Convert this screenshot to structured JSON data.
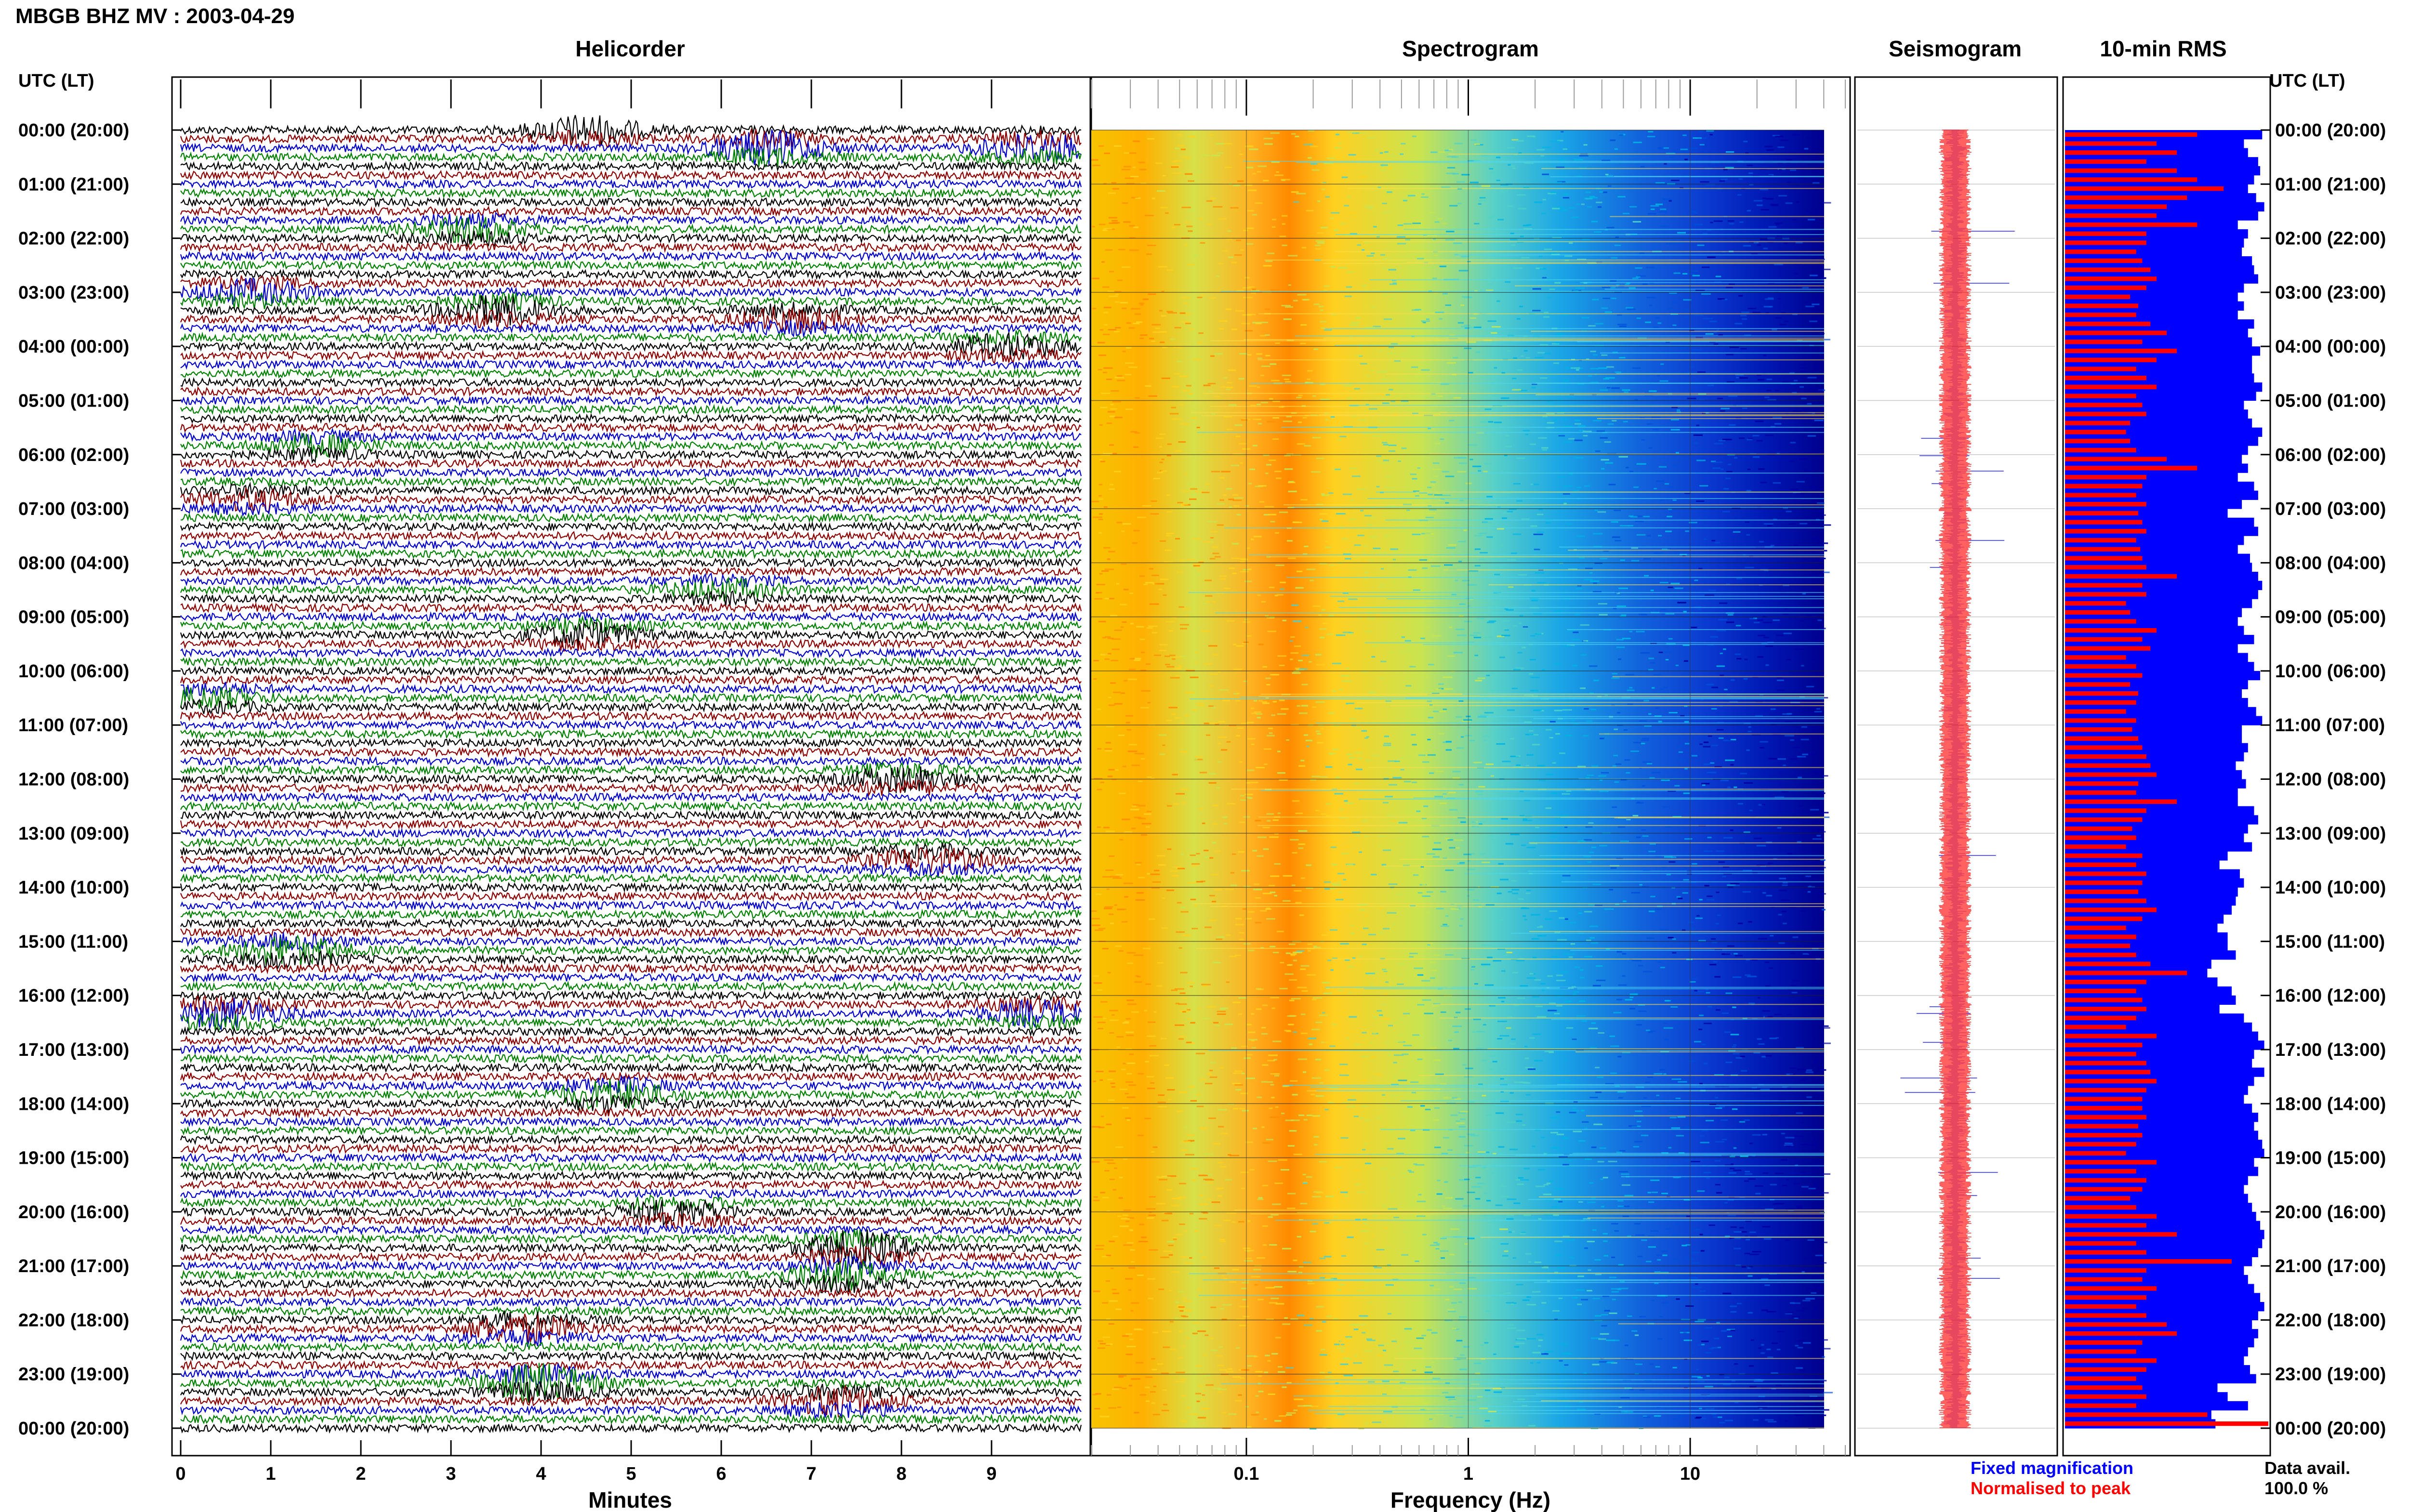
{
  "header": {
    "station_title": "MBGB BHZ MV : 2003-04-29",
    "utc_lt_label_left": "UTC (LT)",
    "utc_lt_label_right": "UTC (LT)"
  },
  "panels": {
    "helicorder_title": "Helicorder",
    "spectrogram_title": "Spectrogram",
    "seismogram_title": "Seismogram",
    "rms_title": "10-min RMS"
  },
  "hour_labels": [
    "00:00 (20:00)",
    "01:00 (21:00)",
    "02:00 (22:00)",
    "03:00 (23:00)",
    "04:00 (00:00)",
    "05:00 (01:00)",
    "06:00 (02:00)",
    "07:00 (03:00)",
    "08:00 (04:00)",
    "09:00 (05:00)",
    "10:00 (06:00)",
    "11:00 (07:00)",
    "12:00 (08:00)",
    "13:00 (09:00)",
    "14:00 (10:00)",
    "15:00 (11:00)",
    "16:00 (12:00)",
    "17:00 (13:00)",
    "18:00 (14:00)",
    "19:00 (15:00)",
    "20:00 (16:00)",
    "21:00 (17:00)",
    "22:00 (18:00)",
    "23:00 (19:00)",
    "00:00 (20:00)"
  ],
  "colors": {
    "trace_cycle": [
      "#000000",
      "#8b0000",
      "#0000c8",
      "#008000"
    ],
    "spectrogram_ramp": [
      "#ff8c00",
      "#ffd21e",
      "#c8e650",
      "#50d2c8",
      "#00b4e6",
      "#0050dc",
      "#0000a0"
    ],
    "seismo_fixed": "#0000ff",
    "seismo_normalised": "#ff0000",
    "rms_blue": "#0000ff",
    "rms_red": "#ff0000"
  },
  "footer": {
    "legend_fixed": "Fixed magnification",
    "legend_normalised": "Normalised to peak",
    "data_avail_label": "Data avail.",
    "data_avail_value": "100.0 %"
  },
  "chart_data": [
    {
      "type": "line",
      "title": "Helicorder",
      "xlabel": "Minutes",
      "x_ticks": [
        0,
        1,
        2,
        3,
        4,
        5,
        6,
        7,
        8,
        9
      ],
      "x_tick_labels": [
        "0",
        "1",
        "2",
        "3",
        "4",
        "5",
        "6",
        "7",
        "8",
        "9"
      ],
      "xlim": [
        0,
        10
      ],
      "y_range_utc": [
        "00:00",
        "24:00"
      ],
      "rows_per_hour": 6,
      "row_count": 144,
      "events": [
        {
          "hour": 0.0,
          "minute": 4.5,
          "amp": 3.0
        },
        {
          "hour": 0.33,
          "minute": 6.5,
          "amp": 3.5
        },
        {
          "hour": 0.33,
          "minute": 9.5,
          "amp": 3.0
        },
        {
          "hour": 1.83,
          "minute": 3.2,
          "amp": 2.5
        },
        {
          "hour": 3.0,
          "minute": 0.8,
          "amp": 2.5
        },
        {
          "hour": 3.33,
          "minute": 3.5,
          "amp": 3.0
        },
        {
          "hour": 3.5,
          "minute": 6.8,
          "amp": 2.5
        },
        {
          "hour": 4.0,
          "minute": 9.2,
          "amp": 2.5
        },
        {
          "hour": 5.83,
          "minute": 1.5,
          "amp": 2.0
        },
        {
          "hour": 6.83,
          "minute": 0.8,
          "amp": 2.0
        },
        {
          "hour": 8.5,
          "minute": 6.0,
          "amp": 2.0
        },
        {
          "hour": 9.33,
          "minute": 4.5,
          "amp": 2.5
        },
        {
          "hour": 10.5,
          "minute": 0.3,
          "amp": 2.0
        },
        {
          "hour": 12.0,
          "minute": 8.0,
          "amp": 2.5
        },
        {
          "hour": 13.5,
          "minute": 8.3,
          "amp": 2.5
        },
        {
          "hour": 15.17,
          "minute": 1.2,
          "amp": 3.0
        },
        {
          "hour": 16.33,
          "minute": 0.5,
          "amp": 3.0
        },
        {
          "hour": 16.33,
          "minute": 9.5,
          "amp": 2.5
        },
        {
          "hour": 17.83,
          "minute": 4.8,
          "amp": 3.0
        },
        {
          "hour": 20.0,
          "minute": 5.5,
          "amp": 2.5
        },
        {
          "hour": 20.67,
          "minute": 7.5,
          "amp": 3.5
        },
        {
          "hour": 21.17,
          "minute": 7.3,
          "amp": 3.0
        },
        {
          "hour": 22.17,
          "minute": 3.8,
          "amp": 3.0
        },
        {
          "hour": 23.17,
          "minute": 4.0,
          "amp": 4.0
        },
        {
          "hour": 23.5,
          "minute": 7.3,
          "amp": 3.0
        }
      ]
    },
    {
      "type": "heatmap",
      "title": "Spectrogram",
      "xlabel": "Frequency (Hz)",
      "x_scale": "log",
      "xlim": [
        0.02,
        50
      ],
      "x_ticks": [
        0.1,
        1,
        10
      ],
      "x_tick_labels": [
        "0.1",
        "1",
        "10"
      ],
      "power_profile": [
        {
          "hz": 0.025,
          "level": 0.15
        },
        {
          "hz": 0.06,
          "level": 0.3
        },
        {
          "hz": 0.15,
          "level": 0.25
        },
        {
          "hz": 0.27,
          "level": 0.05
        },
        {
          "hz": 0.5,
          "level": 0.3
        },
        {
          "hz": 1.0,
          "level": 0.45
        },
        {
          "hz": 2.0,
          "level": 0.6
        },
        {
          "hz": 6.0,
          "level": 0.75
        },
        {
          "hz": 10.0,
          "level": 0.85
        },
        {
          "hz": 30.0,
          "level": 1.0
        }
      ]
    },
    {
      "type": "line",
      "title": "Seismogram",
      "series": [
        {
          "name": "Fixed magnification"
        },
        {
          "name": "Normalised to peak"
        }
      ]
    },
    {
      "type": "bar",
      "title": "10-min RMS",
      "series": [
        {
          "name": "Fixed magnification",
          "values": [
            0.97,
            0.88,
            0.9,
            0.95,
            0.96,
            0.93,
            0.9,
            0.94,
            0.98,
            0.95,
            0.85,
            0.9,
            0.88,
            0.87,
            0.92,
            0.93,
            0.95,
            0.88,
            0.85,
            0.88,
            0.85,
            0.93,
            0.9,
            0.92,
            0.96,
            0.92,
            0.92,
            0.93,
            0.97,
            0.94,
            0.88,
            0.9,
            0.92,
            0.97,
            0.95,
            0.9,
            0.87,
            0.9,
            0.85,
            0.93,
            0.95,
            0.87,
            0.8,
            0.93,
            0.95,
            0.88,
            0.85,
            0.91,
            0.92,
            0.95,
            0.97,
            0.95,
            0.92,
            0.87,
            0.85,
            0.88,
            0.93,
            0.85,
            0.9,
            0.93,
            0.96,
            0.9,
            0.87,
            0.9,
            0.94,
            0.97,
            0.87,
            0.87,
            0.9,
            0.88,
            0.84,
            0.87,
            0.89,
            0.85,
            0.85,
            0.93,
            0.95,
            0.9,
            0.88,
            0.92,
            0.8,
            0.76,
            0.86,
            0.88,
            0.85,
            0.84,
            0.82,
            0.78,
            0.75,
            0.8,
            0.8,
            0.84,
            0.72,
            0.7,
            0.75,
            0.82,
            0.84,
            0.76,
            0.88,
            0.92,
            0.95,
            0.98,
            0.93,
            0.92,
            0.98,
            0.93,
            0.9,
            0.88,
            0.92,
            0.95,
            0.93,
            0.95,
            0.97,
            0.98,
            0.93,
            0.95,
            0.9,
            0.88,
            0.9,
            0.92,
            0.94,
            0.96,
            0.98,
            0.97,
            0.95,
            0.92,
            0.88,
            0.9,
            0.93,
            0.96,
            0.98,
            0.95,
            0.92,
            0.95,
            0.93,
            0.9,
            0.88,
            0.91,
            0.94,
            0.75,
            0.8,
            0.9,
            0.72,
            0.74
          ]
        },
        {
          "name": "Normalised to peak",
          "values": [
            0.65,
            0.45,
            0.55,
            0.4,
            0.55,
            0.65,
            0.78,
            0.6,
            0.5,
            0.45,
            0.65,
            0.4,
            0.4,
            0.35,
            0.38,
            0.42,
            0.45,
            0.4,
            0.32,
            0.36,
            0.35,
            0.42,
            0.5,
            0.38,
            0.55,
            0.45,
            0.35,
            0.4,
            0.45,
            0.35,
            0.38,
            0.4,
            0.32,
            0.3,
            0.32,
            0.35,
            0.5,
            0.65,
            0.4,
            0.38,
            0.35,
            0.4,
            0.36,
            0.38,
            0.4,
            0.35,
            0.37,
            0.38,
            0.4,
            0.55,
            0.38,
            0.4,
            0.3,
            0.32,
            0.35,
            0.45,
            0.38,
            0.42,
            0.3,
            0.35,
            0.38,
            0.32,
            0.36,
            0.35,
            0.3,
            0.35,
            0.33,
            0.36,
            0.38,
            0.4,
            0.42,
            0.45,
            0.36,
            0.35,
            0.55,
            0.4,
            0.38,
            0.33,
            0.35,
            0.3,
            0.38,
            0.35,
            0.4,
            0.38,
            0.36,
            0.4,
            0.45,
            0.38,
            0.3,
            0.35,
            0.32,
            0.35,
            0.42,
            0.6,
            0.4,
            0.35,
            0.38,
            0.4,
            0.35,
            0.3,
            0.45,
            0.38,
            0.35,
            0.4,
            0.42,
            0.45,
            0.4,
            0.38,
            0.38,
            0.4,
            0.36,
            0.38,
            0.35,
            0.3,
            0.45,
            0.35,
            0.4,
            0.38,
            0.32,
            0.35,
            0.45,
            0.4,
            0.55,
            0.35,
            0.4,
            0.82,
            0.4,
            0.38,
            0.45,
            0.4,
            0.35,
            0.4,
            0.5,
            0.55,
            0.38,
            0.35,
            0.45,
            0.4,
            0.35,
            0.38,
            0.4,
            0.35,
            0.7,
            1.0
          ]
        }
      ]
    }
  ]
}
